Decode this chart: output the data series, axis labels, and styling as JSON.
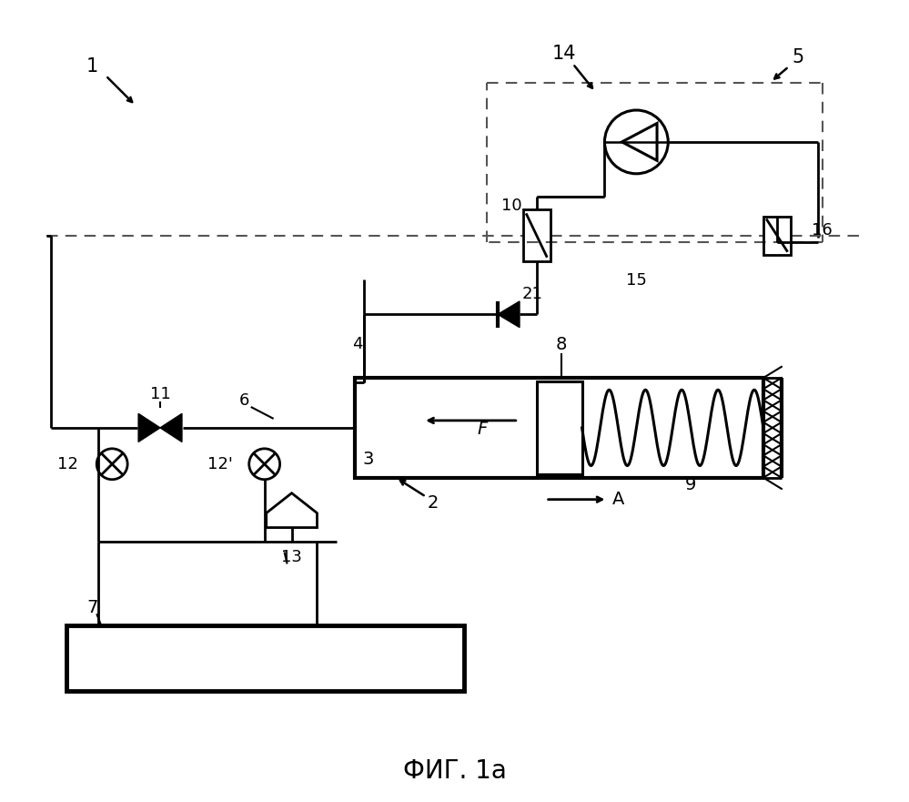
{
  "title": "ФИГ. 1a",
  "bg": "#ffffff",
  "lc": "#000000",
  "dc": "#555555"
}
